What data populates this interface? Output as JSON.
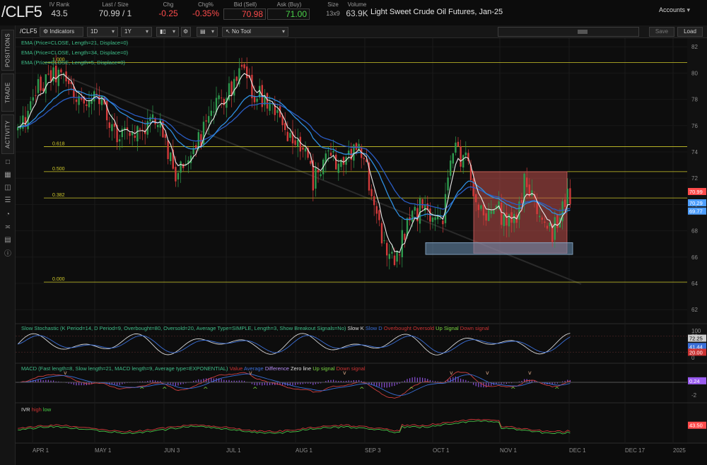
{
  "quote": {
    "symbol": "/CLF5",
    "iv_rank_label": "IV Rank",
    "iv_rank": "43.5",
    "last_label": "Last / Size",
    "last": "70.99 / 1",
    "chg_label": "Chg",
    "chg": "-0.25",
    "chgpct_label": "Chg%",
    "chgpct": "-0.35%",
    "bid_label": "Bid (Sell)",
    "bid": "70.98",
    "ask_label": "Ask (Buy)",
    "ask": "71.00",
    "size_label": "Size",
    "size": "13x9",
    "volume_label": "Volume",
    "volume": "63.9K",
    "contract": "Light Sweet Crude Oil Futures, Jan-25",
    "accounts": "Accounts"
  },
  "left_tabs": [
    "POSITIONS",
    "TRADE",
    "ACTIVITY"
  ],
  "toolbar": {
    "symbol": "/CLF5",
    "indicators": "Indicators",
    "interval": "1D",
    "range": "1Y",
    "tool": "No Tool",
    "save": "Save",
    "load": "Load"
  },
  "studies": {
    "ema1": "EMA (Price=CLOSE, Length=21, Displace=0)",
    "ema2": "EMA (Price=CLOSE, Length=34, Displace=0)",
    "ema3": "EMA (Price=CLOSE, Length=5, Displace=0)",
    "stoch": "Slow Stochastic (K Period=14, D Period=9, Overbought=80, Oversold=20, Average Type=SIMPLE, Length=3, Show Breakout Signals=No)",
    "stoch_legend": [
      "Slow K",
      "Slow D",
      "Overbought",
      "Oversold",
      "Up Signal",
      "Down signal"
    ],
    "macd": "MACD (Fast length=8, Slow length=21, MACD length=9, Average type=EXPONENTIAL)",
    "macd_legend": [
      "Value",
      "Average",
      "Difference",
      "Zero line",
      "Up signal",
      "Down signal"
    ],
    "ivr": "IVR",
    "ivr_legend": [
      "high",
      "low"
    ]
  },
  "fib": [
    {
      "label": "1.000",
      "price": 80.8
    },
    {
      "label": "0.618",
      "price": 74.4
    },
    {
      "label": "0.500",
      "price": 72.5
    },
    {
      "label": "0.382",
      "price": 70.5
    },
    {
      "label": "0.000",
      "price": 64.1
    }
  ],
  "price_ticks": [
    "82",
    "80",
    "78",
    "76",
    "74",
    "72",
    "70",
    "68",
    "66",
    "64",
    "62"
  ],
  "price_tags": [
    {
      "text": "70.99",
      "color": "#ff4c4c"
    },
    {
      "text": "70.29",
      "color": "#4e9fff"
    },
    {
      "text": "69.77",
      "color": "#4e9fff"
    }
  ],
  "stoch_ticks": [
    "100",
    "80",
    "20",
    "0"
  ],
  "stoch_tags": [
    {
      "text": "72.25",
      "color": "#cccccc"
    },
    {
      "text": "41.44",
      "color": "#3a6fd8"
    },
    {
      "text": "20.00",
      "color": "#cc3333"
    }
  ],
  "macd_ticks": [
    "0",
    "-2"
  ],
  "macd_tag": {
    "text": "0.24",
    "color": "#9a5cf0"
  },
  "ivr_tag": {
    "text": "43.50",
    "color": "#ff4c4c"
  },
  "date_labels": [
    "APR 1",
    "MAY 1",
    "JUN 3",
    "JUL 1",
    "AUG 1",
    "SEP 3",
    "OCT 1",
    "NOV 1",
    "DEC 1",
    "DEC 17",
    "2025"
  ],
  "colors": {
    "up": "#2e9a4e",
    "down": "#d23a3a",
    "ema5": "#e8e8e8",
    "ema21": "#2f8fe0",
    "ema34": "#2a5dc4",
    "fib": "#cfc92a",
    "range_box": "#c0504d",
    "support_box": "#6e93b8"
  }
}
